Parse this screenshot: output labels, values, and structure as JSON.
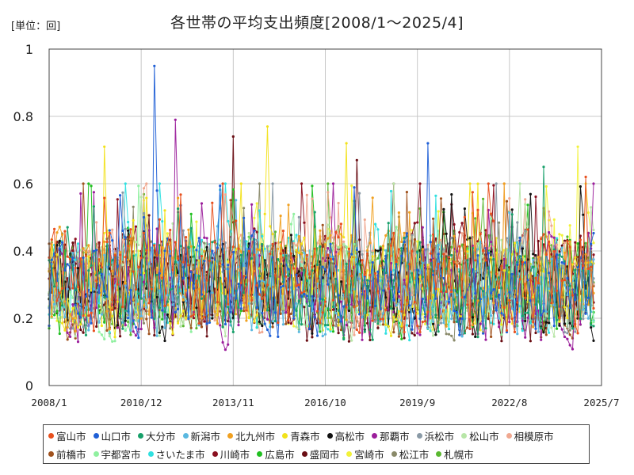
{
  "header": {
    "unit_label": "[単位：回]",
    "title": "各世帯の平均支出頻度[2008/1～2025/4]"
  },
  "chart_data": {
    "type": "line",
    "title": "各世帯の平均支出頻度[2008/1～2025/4]",
    "unit": "[単位：回]",
    "ylim": [
      0,
      1
    ],
    "yticks": [
      "0",
      "0.2",
      "0.4",
      "0.6",
      "0.8",
      "1"
    ],
    "xrange": [
      "2008/1",
      "2025/7"
    ],
    "xticks": [
      "2008/1",
      "2010/12",
      "2013/11",
      "2016/10",
      "2019/9",
      "2022/8",
      "2025/7"
    ],
    "grid": true,
    "legend_position": "bottom",
    "frequency": "monthly",
    "approx_value_range": [
      0.05,
      0.75
    ],
    "approx_mean": 0.3,
    "series": [
      {
        "name": "富山市",
        "color": "#e8501e"
      },
      {
        "name": "山口市",
        "color": "#1f5fd6"
      },
      {
        "name": "大分市",
        "color": "#17a06a"
      },
      {
        "name": "新潟市",
        "color": "#5ab8e0"
      },
      {
        "name": "北九州市",
        "color": "#f0a020"
      },
      {
        "name": "青森市",
        "color": "#f2e21a"
      },
      {
        "name": "高松市",
        "color": "#111111"
      },
      {
        "name": "那覇市",
        "color": "#9b1e9b"
      },
      {
        "name": "浜松市",
        "color": "#8a9aa6"
      },
      {
        "name": "松山市",
        "color": "#b8e6a8"
      },
      {
        "name": "相模原市",
        "color": "#f0a890"
      },
      {
        "name": "前橋市",
        "color": "#a0521e"
      },
      {
        "name": "宇都宮市",
        "color": "#90f0a0"
      },
      {
        "name": "さいたま市",
        "color": "#30e0e0"
      },
      {
        "name": "川崎市",
        "color": "#8a1020"
      },
      {
        "name": "広島市",
        "color": "#20c020"
      },
      {
        "name": "盛岡市",
        "color": "#6a0e14"
      },
      {
        "name": "宮崎市",
        "color": "#f2f23a"
      },
      {
        "name": "松江市",
        "color": "#8a8a6a"
      },
      {
        "name": "札幌市",
        "color": "#5ab830"
      }
    ],
    "peaks": [
      {
        "series": "山口市",
        "date": "2011/5",
        "value": 0.95
      },
      {
        "series": "那覇市",
        "date": "2012/1",
        "value": 0.79
      },
      {
        "series": "青森市",
        "date": "2014/12",
        "value": 0.77
      },
      {
        "series": "盛岡市",
        "date": "2013/11",
        "value": 0.74
      },
      {
        "series": "山口市",
        "date": "2020/1",
        "value": 0.72
      },
      {
        "series": "宮崎市",
        "date": "2024/10",
        "value": 0.71
      },
      {
        "series": "青森市",
        "date": "2009/10",
        "value": 0.71
      },
      {
        "series": "青森市",
        "date": "2017/6",
        "value": 0.72
      },
      {
        "series": "盛岡市",
        "date": "2017/10",
        "value": 0.67
      },
      {
        "series": "大分市",
        "date": "2023/9",
        "value": 0.65
      },
      {
        "series": "富山市",
        "date": "2025/1",
        "value": 0.62
      }
    ]
  }
}
